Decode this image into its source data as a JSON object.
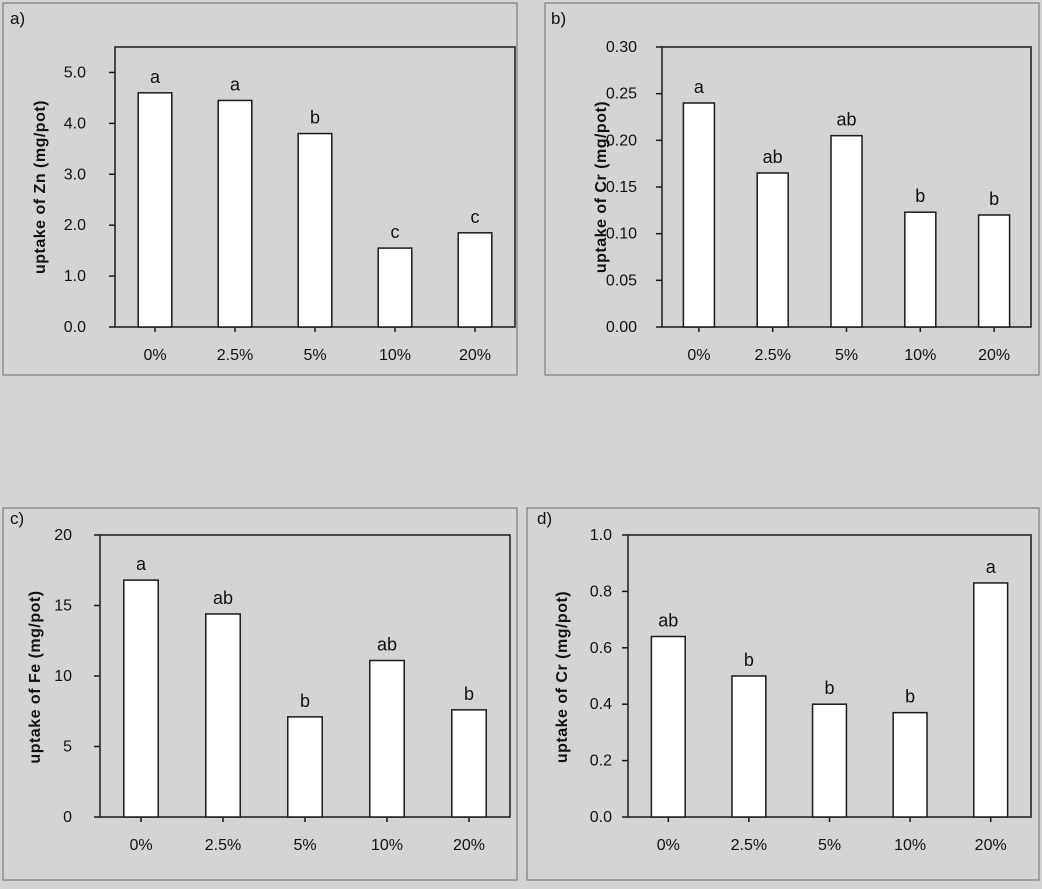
{
  "chart_data": [
    {
      "panel": "a)",
      "type": "bar",
      "categories": [
        "0%",
        "2.5%",
        "5%",
        "10%",
        "20%"
      ],
      "values": [
        4.6,
        4.45,
        3.8,
        1.55,
        1.85
      ],
      "letters": [
        "a",
        "a",
        "b",
        "c",
        "c"
      ],
      "ylabel": "uptake of Zn (mg/pot)",
      "ylim": [
        0,
        5.5
      ],
      "yticks": [
        "0.0",
        "1.0",
        "2.0",
        "3.0",
        "4.0",
        "5.0"
      ]
    },
    {
      "panel": "b)",
      "type": "bar",
      "categories": [
        "0%",
        "2.5%",
        "5%",
        "10%",
        "20%"
      ],
      "values": [
        0.24,
        0.165,
        0.205,
        0.123,
        0.12
      ],
      "letters": [
        "a",
        "ab",
        "ab",
        "b",
        "b"
      ],
      "ylabel": "uptake of Cr (mg/pot)",
      "ylim": [
        0,
        0.3
      ],
      "yticks": [
        "0.00",
        "0.05",
        "0.10",
        "0.15",
        "0.20",
        "0.25",
        "0.30"
      ]
    },
    {
      "panel": "c)",
      "type": "bar",
      "categories": [
        "0%",
        "2.5%",
        "5%",
        "10%",
        "20%"
      ],
      "values": [
        16.8,
        14.4,
        7.1,
        11.1,
        7.6
      ],
      "letters": [
        "a",
        "ab",
        "b",
        "ab",
        "b"
      ],
      "ylabel": "uptake of Fe (mg/pot)",
      "ylim": [
        0,
        20
      ],
      "yticks": [
        "0",
        "5",
        "10",
        "15",
        "20"
      ]
    },
    {
      "panel": "d)",
      "type": "bar",
      "categories": [
        "0%",
        "2.5%",
        "5%",
        "10%",
        "20%"
      ],
      "values": [
        0.64,
        0.5,
        0.4,
        0.37,
        0.83
      ],
      "letters": [
        "ab",
        "b",
        "b",
        "b",
        "a"
      ],
      "ylabel": "uptake of Cr (mg/pot)",
      "ylim": [
        0,
        1.0
      ],
      "yticks": [
        "0.0",
        "0.2",
        "0.4",
        "0.6",
        "0.8",
        "1.0"
      ]
    }
  ],
  "colors": {
    "background": "#d4d4d4",
    "bar_fill": "#ffffff",
    "stroke": "#1a1a1a"
  }
}
